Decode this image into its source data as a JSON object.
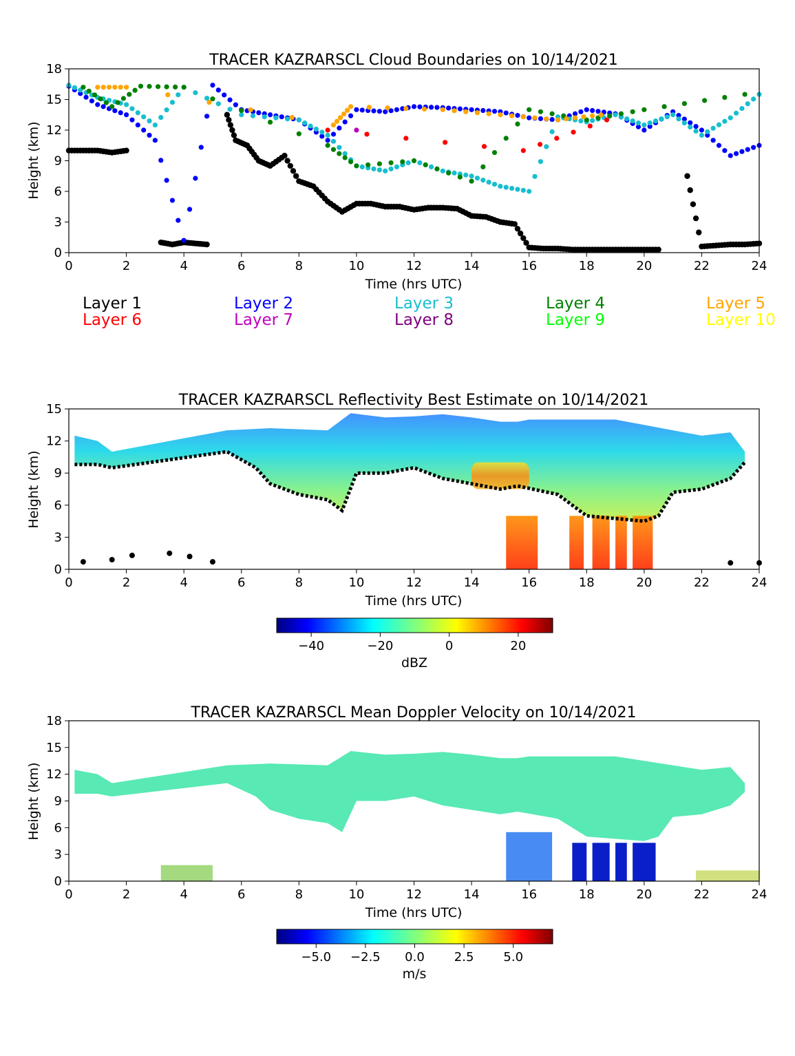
{
  "chart_data": [
    {
      "type": "scatter",
      "title": "TRACER KAZRARSCL Cloud Boundaries on 10/14/2021",
      "xlabel": "Time (hrs UTC)",
      "ylabel": "Height (km)",
      "xlim": [
        0,
        24
      ],
      "ylim": [
        0,
        18
      ],
      "xticks": [
        "0",
        "2",
        "4",
        "6",
        "8",
        "10",
        "12",
        "14",
        "16",
        "18",
        "20",
        "22",
        "24"
      ],
      "yticks": [
        "0",
        "3",
        "6",
        "9",
        "12",
        "15",
        "18"
      ],
      "legend": {
        "placement": "below",
        "entries": [
          {
            "label": "Layer 1",
            "color": "#000000"
          },
          {
            "label": "Layer 2",
            "color": "#0000ff"
          },
          {
            "label": "Layer 3",
            "color": "#17becf"
          },
          {
            "label": "Layer 4",
            "color": "#008000"
          },
          {
            "label": "Layer 5",
            "color": "#ffa500"
          },
          {
            "label": "Layer 6",
            "color": "#ff0000"
          },
          {
            "label": "Layer 7",
            "color": "#c000c0"
          },
          {
            "label": "Layer 8",
            "color": "#800080"
          },
          {
            "label": "Layer 9",
            "color": "#00ff00"
          },
          {
            "label": "Layer 10",
            "color": "#ffff00"
          }
        ]
      },
      "series": [
        {
          "name": "Layer 1",
          "x": [
            0,
            0.5,
            1,
            1.5,
            2,
            2.5,
            3.2,
            3.6,
            4,
            4.4,
            4.8,
            5.2,
            5.5,
            5.8,
            6.2,
            6.6,
            7,
            7.5,
            8,
            8.5,
            9,
            9.5,
            10,
            10.5,
            11,
            11.5,
            12,
            12.5,
            13,
            13.5,
            14,
            14.5,
            15,
            15.5,
            16,
            16.5,
            17,
            17.5,
            18,
            18.5,
            19,
            19.5,
            20,
            20.5,
            21,
            21.5,
            22,
            22.5,
            23,
            23.5,
            24
          ],
          "y": [
            10,
            10,
            10,
            9.8,
            10,
            null,
            1,
            0.8,
            1,
            0.9,
            0.8,
            null,
            13.5,
            11,
            10.5,
            9,
            8.5,
            9.5,
            7,
            6.5,
            5,
            4,
            4.8,
            4.8,
            4.5,
            4.5,
            4.2,
            4.4,
            4.4,
            4.3,
            3.6,
            3.5,
            3,
            2.8,
            0.5,
            0.4,
            0.4,
            0.3,
            0.3,
            0.3,
            0.3,
            0.3,
            0.3,
            0.3,
            null,
            7.5,
            0.6,
            0.7,
            0.8,
            0.8,
            0.9
          ]
        },
        {
          "name": "Layer 2",
          "x": [
            0,
            1,
            2,
            3,
            4,
            5,
            6,
            7,
            8,
            9,
            10,
            11,
            12,
            13,
            14,
            15,
            16,
            17,
            18,
            19,
            20,
            21,
            22,
            23,
            24
          ],
          "y": [
            16.3,
            14.5,
            13.5,
            11,
            1.2,
            16.4,
            14,
            13.5,
            13,
            11,
            14,
            13.8,
            14.3,
            14.2,
            14,
            13.8,
            13.2,
            13,
            14,
            13.6,
            12,
            13.8,
            12,
            9.5,
            10.5
          ]
        },
        {
          "name": "Layer 3",
          "x": [
            0,
            1,
            2,
            3,
            4,
            6,
            8,
            9,
            10,
            11,
            12,
            13,
            14,
            15,
            16,
            17,
            18,
            19,
            20,
            21,
            22,
            23,
            24
          ],
          "y": [
            16.4,
            15.2,
            14.5,
            12.5,
            16.2,
            13.5,
            13,
            11.5,
            8.5,
            8,
            9,
            8,
            7.5,
            6.5,
            6,
            13.3,
            12.8,
            13.5,
            12.5,
            13.5,
            11.5,
            13.2,
            15.5
          ]
        },
        {
          "name": "Layer 4",
          "x": [
            0.5,
            1.5,
            2.5,
            4,
            9,
            10,
            12,
            14,
            16,
            18,
            20,
            23.5
          ],
          "y": [
            16.2,
            14.3,
            16.3,
            16.2,
            10.5,
            8.5,
            9,
            7,
            14,
            13,
            14,
            15.5
          ]
        },
        {
          "name": "Layer 5",
          "x": [
            1,
            2,
            9.2,
            9.8,
            13,
            15,
            17,
            18.5
          ],
          "y": [
            16.2,
            16.2,
            12.5,
            14.3,
            14,
            13.5,
            13,
            13.5
          ]
        },
        {
          "name": "Layer 6",
          "x": [
            9,
            15.8,
            18.7
          ],
          "y": [
            12,
            10,
            13
          ]
        },
        {
          "name": "Layer 7",
          "x": [
            10
          ],
          "y": [
            12
          ]
        },
        {
          "name": "Layer 8",
          "x": [],
          "y": []
        },
        {
          "name": "Layer 9",
          "x": [],
          "y": []
        },
        {
          "name": "Layer 10",
          "x": [],
          "y": []
        }
      ]
    },
    {
      "type": "heatmap",
      "title": "TRACER KAZRARSCL Reflectivity Best Estimate on 10/14/2021",
      "xlabel": "Time (hrs UTC)",
      "ylabel": "Height (km)",
      "xlim": [
        0,
        24
      ],
      "ylim": [
        0,
        15
      ],
      "xticks": [
        "0",
        "2",
        "4",
        "6",
        "8",
        "10",
        "12",
        "14",
        "16",
        "18",
        "20",
        "22",
        "24"
      ],
      "yticks": [
        "0",
        "3",
        "6",
        "9",
        "12",
        "15"
      ],
      "colorbar": {
        "label": "dBZ",
        "range": [
          -50,
          30
        ],
        "ticks": [
          "−40",
          "−20",
          "0",
          "20"
        ],
        "colormap": "jet"
      },
      "cloud_top_km": [
        [
          0.2,
          12.5
        ],
        [
          1,
          12
        ],
        [
          1.5,
          11
        ],
        [
          5.5,
          13
        ],
        [
          7,
          13.2
        ],
        [
          9,
          13
        ],
        [
          9.8,
          14.6
        ],
        [
          11,
          14.2
        ],
        [
          12,
          14.3
        ],
        [
          13,
          14.5
        ],
        [
          14,
          14.2
        ],
        [
          15,
          13.8
        ],
        [
          15.6,
          13.8
        ],
        [
          16,
          14
        ],
        [
          17,
          14
        ],
        [
          18,
          14
        ],
        [
          19,
          14
        ],
        [
          20,
          13.5
        ],
        [
          21,
          13
        ],
        [
          22,
          12.5
        ],
        [
          23,
          12.8
        ],
        [
          23.5,
          11
        ]
      ],
      "cloud_base_km": [
        [
          0.2,
          9.8
        ],
        [
          1,
          9.8
        ],
        [
          1.5,
          9.5
        ],
        [
          5.5,
          11
        ],
        [
          6.5,
          9.5
        ],
        [
          7,
          8
        ],
        [
          8,
          7
        ],
        [
          9,
          6.5
        ],
        [
          9.5,
          5.5
        ],
        [
          10,
          9
        ],
        [
          11,
          9
        ],
        [
          12,
          9.5
        ],
        [
          13,
          8.5
        ],
        [
          14,
          8
        ],
        [
          15,
          7.5
        ],
        [
          15.6,
          7.8
        ],
        [
          17,
          7
        ],
        [
          18,
          5
        ],
        [
          20,
          4.5
        ],
        [
          20.5,
          5
        ],
        [
          21,
          7.2
        ],
        [
          22,
          7.5
        ],
        [
          23,
          8.5
        ],
        [
          23.5,
          10
        ]
      ],
      "reflectivity_core": {
        "x": [
          14,
          16
        ],
        "y": [
          7.5,
          10
        ],
        "value_dBZ": 10
      },
      "precip_shafts_hrs": [
        [
          15.2,
          16.3
        ],
        [
          17.4,
          17.9
        ],
        [
          18.2,
          18.8
        ],
        [
          19.0,
          19.4
        ],
        [
          19.6,
          20.3
        ]
      ]
    },
    {
      "type": "heatmap",
      "title": "TRACER KAZRARSCL Mean Doppler Velocity on 10/14/2021",
      "xlabel": "Time (hrs UTC)",
      "ylabel": "Height (km)",
      "xlim": [
        0,
        24
      ],
      "ylim": [
        0,
        18
      ],
      "xticks": [
        "0",
        "2",
        "4",
        "6",
        "8",
        "10",
        "12",
        "14",
        "16",
        "18",
        "20",
        "22",
        "24"
      ],
      "yticks": [
        "0",
        "3",
        "6",
        "9",
        "12",
        "15",
        "18"
      ],
      "colorbar": {
        "label": "m/s",
        "range": [
          -7,
          7
        ],
        "ticks": [
          "−5.0",
          "−2.5",
          "0.0",
          "2.5",
          "5.0"
        ],
        "colormap": "jet"
      },
      "cloud_velocity_m_s": -1,
      "precip_velocity_m_s": -6,
      "precip_shafts_hrs": [
        [
          17.5,
          18
        ],
        [
          18.2,
          18.8
        ],
        [
          19.0,
          19.4
        ],
        [
          19.6,
          20.4
        ]
      ]
    }
  ]
}
